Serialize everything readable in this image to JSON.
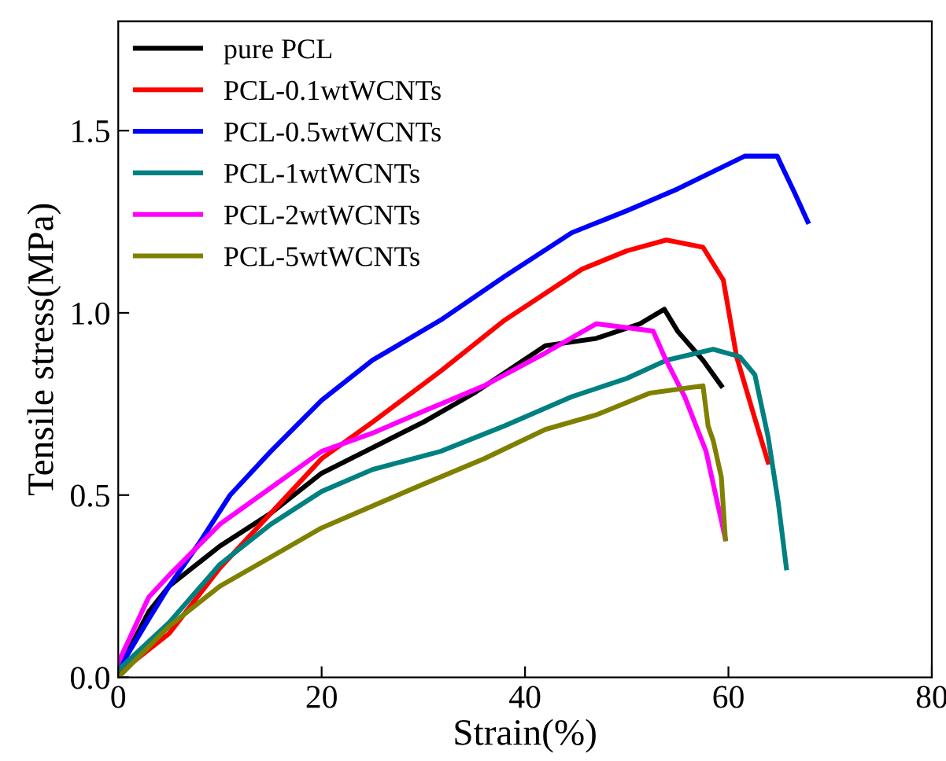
{
  "chart_data": {
    "type": "line",
    "xlabel": "Strain(%)",
    "ylabel": "Tensile stress(MPa)",
    "xlim": [
      0,
      80
    ],
    "ylim": [
      0,
      1.8
    ],
    "xticks": [
      0,
      20,
      40,
      60,
      80
    ],
    "yticks": [
      {
        "value": 0,
        "label": "0.0"
      },
      0.5,
      {
        "value": 1,
        "label": "1.0"
      },
      1.5
    ],
    "grid": false,
    "legend": "top left",
    "marker": "none",
    "line_style": "solid",
    "series": [
      {
        "name": "pure PCL",
        "color": "#000000",
        "x": [
          0,
          3,
          5,
          10,
          15,
          20,
          25,
          30,
          35,
          42,
          47,
          51.3,
          53.7,
          55,
          57.5,
          59.3
        ],
        "values": [
          0.02,
          0.18,
          0.25,
          0.36,
          0.45,
          0.56,
          0.63,
          0.7,
          0.78,
          0.91,
          0.93,
          0.97,
          1.01,
          0.95,
          0.87,
          0.8
        ]
      },
      {
        "name": "PCL-0.1wtWCNTs",
        "color": "#ff0000",
        "x": [
          0,
          5,
          10,
          15,
          20,
          25,
          31.7,
          38,
          45.6,
          50,
          53.9,
          57.5,
          59.5,
          60.8,
          62.6,
          63.9
        ],
        "values": [
          0.01,
          0.12,
          0.3,
          0.45,
          0.6,
          0.7,
          0.84,
          0.98,
          1.12,
          1.17,
          1.2,
          1.18,
          1.09,
          0.88,
          0.71,
          0.59
        ]
      },
      {
        "name": "PCL-0.5wtWCNTs",
        "color": "#0000ff",
        "x": [
          0,
          3,
          5,
          8,
          11,
          15,
          20,
          25,
          31.7,
          38,
          44.6,
          50,
          55,
          61.6,
          64.8,
          65.3,
          66.5,
          67.8
        ],
        "values": [
          0.02,
          0.16,
          0.25,
          0.37,
          0.5,
          0.62,
          0.76,
          0.87,
          0.98,
          1.1,
          1.22,
          1.28,
          1.34,
          1.43,
          1.43,
          1.4,
          1.33,
          1.25
        ]
      },
      {
        "name": "PCL-1wtWCNTs",
        "color": "#008080",
        "x": [
          0,
          5,
          10,
          15,
          20,
          25,
          31.7,
          38,
          44.6,
          50,
          53.9,
          58.5,
          61.1,
          62.6,
          63.9,
          64.9,
          65.7
        ],
        "values": [
          0.02,
          0.15,
          0.31,
          0.42,
          0.51,
          0.57,
          0.62,
          0.69,
          0.77,
          0.82,
          0.87,
          0.9,
          0.88,
          0.83,
          0.66,
          0.48,
          0.3
        ]
      },
      {
        "name": "PCL-2wtWCNTs",
        "color": "#ff00ff",
        "x": [
          0,
          3,
          5,
          10,
          15,
          20,
          25,
          30,
          36,
          42,
          47,
          52.6,
          53.7,
          55.7,
          57.8,
          59.7
        ],
        "values": [
          0.04,
          0.22,
          0.28,
          0.42,
          0.52,
          0.62,
          0.67,
          0.73,
          0.8,
          0.89,
          0.97,
          0.95,
          0.88,
          0.77,
          0.62,
          0.38
        ]
      },
      {
        "name": "PCL-5wtWCNTs",
        "color": "#808000",
        "x": [
          0,
          5,
          10,
          15,
          20,
          25,
          30,
          36,
          42,
          47,
          52.3,
          57.5,
          58,
          58.5,
          59.3,
          59.7
        ],
        "values": [
          0.0,
          0.14,
          0.25,
          0.33,
          0.41,
          0.47,
          0.53,
          0.6,
          0.68,
          0.72,
          0.78,
          0.8,
          0.69,
          0.65,
          0.55,
          0.38
        ]
      }
    ]
  }
}
